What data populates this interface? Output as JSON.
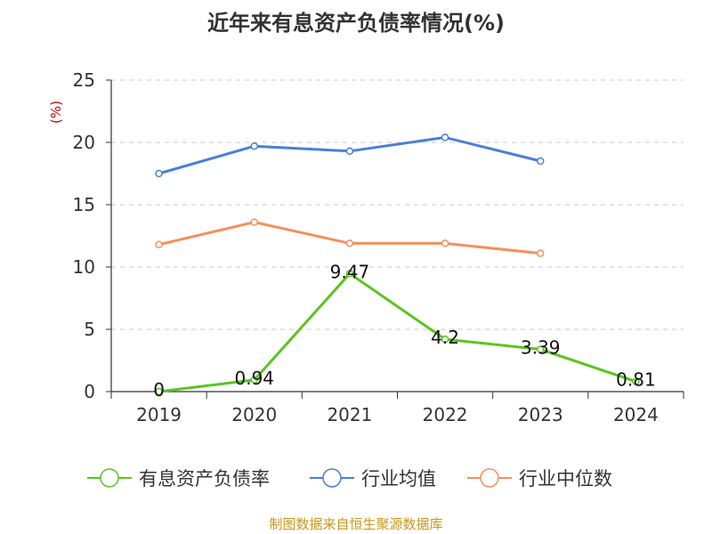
{
  "chart_data": {
    "type": "line",
    "title": "近年来有息资产负债率情况(%)",
    "ylabel": "(%)",
    "xlabel": "",
    "categories": [
      "2019",
      "2020",
      "2021",
      "2022",
      "2023",
      "2024"
    ],
    "ylim": [
      0,
      25
    ],
    "yticks": [
      0,
      5,
      10,
      15,
      20,
      25
    ],
    "grid": "horizontal-dashed",
    "legend_position": "bottom",
    "series": [
      {
        "name": "有息资产负债率",
        "color": "#5cc41f",
        "values": [
          0,
          0.94,
          9.47,
          4.2,
          3.39,
          0.81
        ],
        "labels": [
          "0",
          "0.94",
          "9.47",
          "4.2",
          "3.39",
          "0.81"
        ]
      },
      {
        "name": "行业均值",
        "color": "#4a7fd6",
        "values": [
          17.5,
          19.7,
          19.3,
          20.4,
          18.5,
          null
        ]
      },
      {
        "name": "行业中位数",
        "color": "#f58f5c",
        "values": [
          11.8,
          13.6,
          11.9,
          11.9,
          11.1,
          null
        ]
      }
    ]
  },
  "source_note": "制图数据来自恒生聚源数据库"
}
